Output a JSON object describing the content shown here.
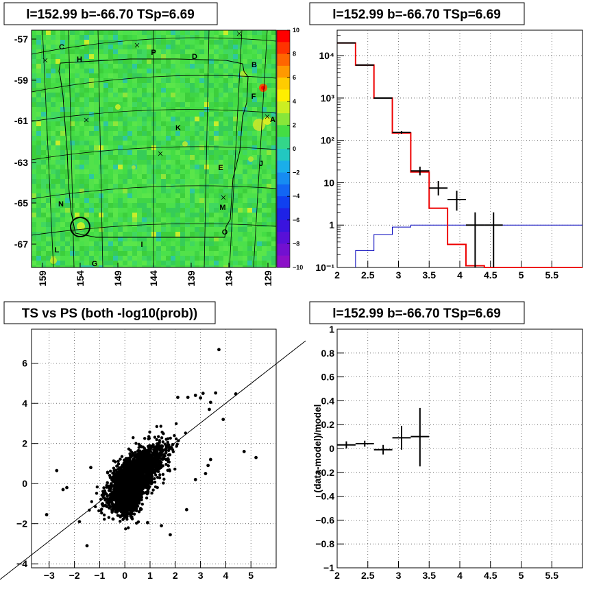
{
  "pads": {
    "skymap": {
      "title": "l=152.99 b=-66.70 TSp=6.69"
    },
    "spectrum": {
      "title": "l=152.99 b=-66.70 TSp=6.69"
    },
    "ts_vs_ps": {
      "title": "TS vs PS (both -log10(prob))"
    },
    "residual": {
      "title": "l=152.99 b=-66.70 TSp=6.69"
    }
  },
  "colors": {
    "data": "#000000",
    "model": "#ee0000",
    "background_model": "#0000bb",
    "grid": "#555555",
    "map_base": "#44dd44"
  },
  "chart_data": [
    {
      "type": "heatmap",
      "title": "l=152.99 b=-66.70 TSp=6.69",
      "x_ticks": [
        "159",
        "154",
        "149",
        "144",
        "139",
        "134",
        "129"
      ],
      "y_ticks": [
        "-57",
        "-59",
        "-61",
        "-63",
        "-65",
        "-67"
      ],
      "zlim": [
        -10,
        10
      ],
      "z_ticks": [
        "10",
        "8",
        "6",
        "4",
        "2",
        "0",
        "−2",
        "−4",
        "−6",
        "−8",
        "−10"
      ],
      "region_labels": [
        "C",
        "H",
        "P",
        "D",
        "B",
        "F",
        "A",
        "K",
        "E",
        "J",
        "N",
        "M",
        "O",
        "L",
        "I",
        "G"
      ],
      "grid": true
    },
    {
      "type": "line",
      "title": "l=152.99 b=-66.70 TSp=6.69",
      "xlim": [
        2,
        6
      ],
      "ylog": true,
      "ylim": [
        0.1,
        40000
      ],
      "x_ticks": [
        "2",
        "2.5",
        "3",
        "3.5",
        "4",
        "4.5",
        "5",
        "5.5"
      ],
      "y_ticks": [
        "10⁻¹",
        "1",
        "10",
        "10²",
        "10³",
        "10⁴"
      ],
      "model_steps": [
        [
          2.0,
          2.3,
          20000
        ],
        [
          2.3,
          2.6,
          6000
        ],
        [
          2.6,
          2.9,
          1000
        ],
        [
          2.9,
          3.2,
          150
        ],
        [
          3.2,
          3.5,
          18
        ],
        [
          3.5,
          3.8,
          2.5
        ],
        [
          3.8,
          4.1,
          0.35
        ],
        [
          4.1,
          4.4,
          0.11
        ],
        [
          4.4,
          6.0,
          0.1
        ]
      ],
      "background_steps": [
        [
          2.3,
          2.6,
          0.25
        ],
        [
          2.6,
          2.9,
          0.6
        ],
        [
          2.9,
          3.2,
          0.9
        ],
        [
          3.2,
          3.5,
          1.0
        ],
        [
          3.5,
          6.0,
          1.0
        ]
      ],
      "data_points": [
        {
          "x": 2.15,
          "y": 20000,
          "xerr": 0.15,
          "ylo": 19800,
          "yhi": 20200
        },
        {
          "x": 2.45,
          "y": 6000,
          "xerr": 0.15,
          "ylo": 5900,
          "yhi": 6100
        },
        {
          "x": 2.75,
          "y": 1000,
          "xerr": 0.15,
          "ylo": 970,
          "yhi": 1030
        },
        {
          "x": 3.05,
          "y": 155,
          "xerr": 0.15,
          "ylo": 143,
          "yhi": 167
        },
        {
          "x": 3.35,
          "y": 19,
          "xerr": 0.15,
          "ylo": 15,
          "yhi": 24
        },
        {
          "x": 3.65,
          "y": 7.5,
          "xerr": 0.15,
          "ylo": 5,
          "yhi": 11
        },
        {
          "x": 3.95,
          "y": 4,
          "xerr": 0.15,
          "ylo": 2.2,
          "yhi": 6.5
        },
        {
          "x": 4.25,
          "y": 1,
          "xerr": 0.15,
          "ylo": 0.1,
          "yhi": 2
        },
        {
          "x": 4.55,
          "y": 1,
          "xerr": 0.15,
          "ylo": 0.1,
          "yhi": 2
        }
      ],
      "grid": true
    },
    {
      "type": "scatter",
      "title": "TS vs PS (both -log10(prob))",
      "xlim": [
        -3.7,
        6
      ],
      "ylim": [
        -4.2,
        7.7
      ],
      "x_ticks": [
        "−3",
        "−2",
        "−1",
        "0",
        "1",
        "2",
        "3",
        "4",
        "5"
      ],
      "y_ticks": [
        "−4",
        "−2",
        "0",
        "2",
        "4",
        "6"
      ],
      "diagonal": {
        "from": [
          -3.7,
          -4.2
        ],
        "to": [
          7.7,
          7.7
        ]
      },
      "outliers": [
        [
          3.73,
          6.68
        ],
        [
          4.4,
          4.47
        ],
        [
          3.6,
          4.52
        ],
        [
          2.1,
          4.3
        ],
        [
          2.5,
          4.3
        ],
        [
          3.0,
          4.27
        ],
        [
          3.1,
          4.5
        ],
        [
          2.8,
          4.4
        ],
        [
          3.4,
          4.05
        ],
        [
          3.35,
          3.7
        ],
        [
          3.9,
          3.2
        ],
        [
          4.73,
          1.6
        ],
        [
          5.2,
          1.3
        ],
        [
          -2.7,
          0.65
        ],
        [
          -3.1,
          -1.55
        ],
        [
          -2.45,
          -0.3
        ],
        [
          -2.3,
          -0.2
        ],
        [
          -1.5,
          -3.1
        ],
        [
          1.8,
          -2.55
        ],
        [
          2.45,
          -1.3
        ],
        [
          1.45,
          -2.1
        ],
        [
          0.9,
          -1.95
        ],
        [
          -1.8,
          -1.9
        ],
        [
          -1.35,
          0.8
        ],
        [
          2.8,
          0.2
        ],
        [
          3.2,
          0.5
        ],
        [
          3.3,
          0.9
        ],
        [
          3.4,
          1.2
        ]
      ],
      "cloud": {
        "n": 3200,
        "core_center": [
          0.1,
          -0.4
        ],
        "core_sd": [
          0.25,
          0.6
        ],
        "main_center": [
          0.45,
          0.4
        ],
        "main_sd": [
          0.55,
          0.75
        ],
        "corr": 0.7
      },
      "grid": true
    },
    {
      "type": "line",
      "title": "l=152.99 b=-66.70 TSp=6.69",
      "ylabel": "(data-model)/model",
      "xlim": [
        2,
        6
      ],
      "ylim": [
        -1,
        1
      ],
      "x_ticks": [
        "2",
        "2.5",
        "3",
        "3.5",
        "4",
        "4.5",
        "5",
        "5.5"
      ],
      "y_ticks": [
        "−1",
        "−0.8",
        "−0.6",
        "−0.4",
        "−0.2",
        "0",
        "0.2",
        "0.4",
        "0.6",
        "0.8",
        "1"
      ],
      "data_points": [
        {
          "x": 2.15,
          "y": 0.03,
          "xerr": 0.15,
          "ylo": 0.0,
          "yhi": 0.06
        },
        {
          "x": 2.45,
          "y": 0.04,
          "xerr": 0.15,
          "ylo": 0.015,
          "yhi": 0.065
        },
        {
          "x": 2.75,
          "y": -0.01,
          "xerr": 0.15,
          "ylo": -0.05,
          "yhi": 0.03
        },
        {
          "x": 3.05,
          "y": 0.09,
          "xerr": 0.15,
          "ylo": -0.01,
          "yhi": 0.19
        },
        {
          "x": 3.35,
          "y": 0.1,
          "xerr": 0.15,
          "ylo": -0.15,
          "yhi": 0.34
        }
      ],
      "grid": true
    }
  ]
}
